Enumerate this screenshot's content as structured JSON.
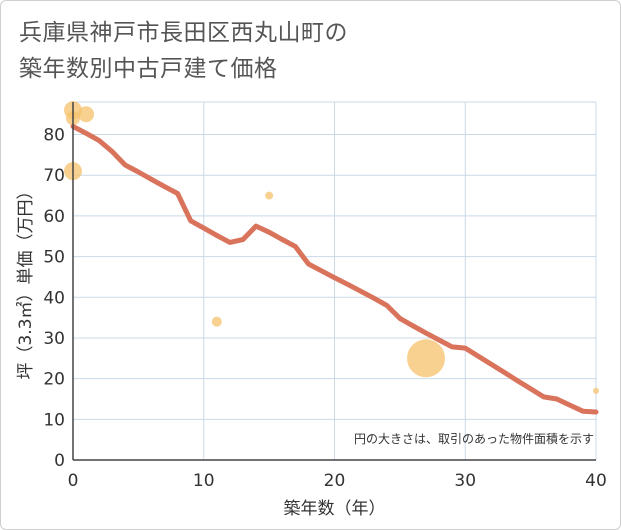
{
  "title": {
    "line1": "兵庫県神戸市長田区西丸山町の",
    "line2": "築年数別中古戸建て価格"
  },
  "chart_data": {
    "type": "scatter",
    "title": "兵庫県神戸市長田区西丸山町の築年数別中古戸建て価格",
    "xlabel": "築年数（年）",
    "ylabel": "坪（3.3㎡）単価（万円）",
    "xlim": [
      0,
      40
    ],
    "ylim": [
      0,
      88
    ],
    "xticks": [
      "0",
      "10",
      "20",
      "30",
      "40"
    ],
    "yticks": [
      "0",
      "10",
      "20",
      "30",
      "40",
      "50",
      "60",
      "70",
      "80"
    ],
    "grid": true,
    "note": "円の大きさは、取引のあった物件面積を示す",
    "colors": {
      "trend_line": "#d9735b",
      "bubble": "#f5c16c",
      "grid": "#c9d9e8",
      "axis": "#444444"
    },
    "points": [
      {
        "x": 0,
        "y": 86,
        "size": 9
      },
      {
        "x": 0,
        "y": 84,
        "size": 7
      },
      {
        "x": 1,
        "y": 85,
        "size": 8
      },
      {
        "x": 0,
        "y": 71,
        "size": 9
      },
      {
        "x": 11,
        "y": 34,
        "size": 5
      },
      {
        "x": 15,
        "y": 65,
        "size": 4
      },
      {
        "x": 27,
        "y": 25,
        "size": 19
      },
      {
        "x": 40,
        "y": 17,
        "size": 3
      }
    ],
    "trend": {
      "x": [
        0,
        1,
        2,
        3,
        4,
        5,
        6,
        7,
        8,
        9,
        10,
        11,
        12,
        13,
        14,
        15,
        16,
        17,
        18,
        19,
        20,
        21,
        22,
        23,
        24,
        25,
        26,
        27,
        28,
        29,
        30,
        31,
        32,
        33,
        34,
        35,
        36,
        37,
        38,
        39,
        40
      ],
      "y": [
        82,
        80.3,
        78.5,
        75.8,
        72.5,
        70.8,
        69,
        67.2,
        65.5,
        58.8,
        57,
        55.2,
        53.5,
        54.2,
        57.5,
        56,
        54.2,
        52.5,
        48.2,
        46.5,
        44.8,
        43.2,
        41.5,
        39.8,
        38,
        34.8,
        33,
        31.2,
        29.5,
        27.8,
        27.5,
        25.5,
        23.5,
        21.5,
        19.5,
        17.5,
        15.5,
        15,
        13.5,
        12,
        11.8
      ]
    }
  }
}
